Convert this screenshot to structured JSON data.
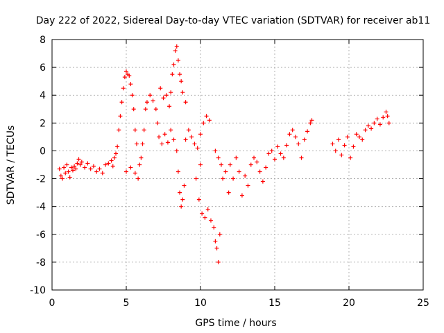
{
  "chart_data": {
    "type": "scatter",
    "title": "Day 222 of 2022, Sidereal Day-to-day VTEC variation (SDTVAR) for receiver ab11",
    "xlabel": "GPS time / hours",
    "ylabel": "SDTVAR / TECUs",
    "xlim": [
      0,
      25
    ],
    "ylim": [
      -10,
      8
    ],
    "xticks": [
      "0",
      "5",
      "10",
      "15",
      "20",
      "25"
    ],
    "yticks": [
      "-10",
      "-8",
      "-6",
      "-4",
      "-2",
      "0",
      "2",
      "4",
      "6",
      "8"
    ],
    "grid": true,
    "legend": "none",
    "marker": "plus",
    "color": "#ff0000",
    "series": [
      {
        "points": [
          [
            0.5,
            -1.3
          ],
          [
            0.6,
            -1.8
          ],
          [
            0.7,
            -2.0
          ],
          [
            0.8,
            -1.2
          ],
          [
            0.9,
            -1.6
          ],
          [
            1.0,
            -1.0
          ],
          [
            1.1,
            -1.5
          ],
          [
            1.2,
            -1.9
          ],
          [
            1.3,
            -1.2
          ],
          [
            1.4,
            -1.4
          ],
          [
            1.5,
            -1.1
          ],
          [
            1.6,
            -1.3
          ],
          [
            1.7,
            -0.9
          ],
          [
            1.8,
            -0.6
          ],
          [
            1.9,
            -1.0
          ],
          [
            2.0,
            -0.8
          ],
          [
            2.2,
            -1.2
          ],
          [
            2.4,
            -0.9
          ],
          [
            2.6,
            -1.3
          ],
          [
            2.8,
            -1.1
          ],
          [
            3.0,
            -1.5
          ],
          [
            3.2,
            -1.3
          ],
          [
            3.4,
            -1.6
          ],
          [
            3.6,
            -1.0
          ],
          [
            3.8,
            -0.9
          ],
          [
            4.0,
            -0.7
          ],
          [
            4.1,
            -1.1
          ],
          [
            4.2,
            -0.5
          ],
          [
            4.3,
            -0.2
          ],
          [
            4.4,
            0.3
          ],
          [
            4.5,
            1.5
          ],
          [
            4.6,
            2.5
          ],
          [
            4.7,
            3.5
          ],
          [
            4.8,
            4.5
          ],
          [
            4.9,
            5.3
          ],
          [
            5.0,
            5.7
          ],
          [
            5.1,
            5.5
          ],
          [
            5.2,
            5.4
          ],
          [
            5.3,
            4.8
          ],
          [
            5.4,
            4.0
          ],
          [
            5.5,
            3.0
          ],
          [
            5.6,
            1.5
          ],
          [
            5.7,
            0.5
          ],
          [
            5.0,
            -1.5
          ],
          [
            5.3,
            -1.2
          ],
          [
            5.6,
            -1.6
          ],
          [
            5.8,
            -2.0
          ],
          [
            5.9,
            -1.0
          ],
          [
            6.0,
            -0.5
          ],
          [
            6.1,
            0.5
          ],
          [
            6.2,
            1.5
          ],
          [
            6.3,
            3.0
          ],
          [
            6.4,
            3.5
          ],
          [
            6.6,
            4.0
          ],
          [
            6.8,
            3.6
          ],
          [
            7.0,
            3.0
          ],
          [
            7.1,
            2.0
          ],
          [
            7.2,
            1.0
          ],
          [
            7.3,
            4.5
          ],
          [
            7.5,
            3.8
          ],
          [
            7.7,
            4.0
          ],
          [
            7.9,
            3.2
          ],
          [
            8.0,
            4.2
          ],
          [
            8.1,
            5.5
          ],
          [
            8.2,
            6.2
          ],
          [
            8.3,
            7.2
          ],
          [
            8.4,
            7.5
          ],
          [
            8.5,
            6.5
          ],
          [
            8.6,
            5.5
          ],
          [
            8.7,
            5.0
          ],
          [
            8.8,
            4.2
          ],
          [
            9.0,
            3.5
          ],
          [
            7.4,
            0.5
          ],
          [
            7.6,
            1.2
          ],
          [
            7.8,
            0.6
          ],
          [
            8.0,
            1.5
          ],
          [
            8.2,
            0.8
          ],
          [
            8.4,
            0.0
          ],
          [
            8.5,
            -1.5
          ],
          [
            8.6,
            -3.0
          ],
          [
            8.7,
            -4.0
          ],
          [
            8.8,
            -3.5
          ],
          [
            8.9,
            -2.5
          ],
          [
            9.0,
            0.8
          ],
          [
            9.2,
            1.5
          ],
          [
            9.4,
            1.0
          ],
          [
            9.6,
            0.5
          ],
          [
            9.8,
            0.2
          ],
          [
            10.0,
            1.2
          ],
          [
            10.2,
            2.0
          ],
          [
            10.4,
            2.5
          ],
          [
            10.6,
            2.2
          ],
          [
            10.0,
            -1.0
          ],
          [
            9.7,
            -2.0
          ],
          [
            9.9,
            -3.5
          ],
          [
            10.1,
            -4.5
          ],
          [
            10.3,
            -4.8
          ],
          [
            10.5,
            -4.2
          ],
          [
            10.7,
            -5.0
          ],
          [
            10.9,
            -5.5
          ],
          [
            11.0,
            -6.5
          ],
          [
            11.1,
            -7.0
          ],
          [
            11.2,
            -8.0
          ],
          [
            11.3,
            -6.0
          ],
          [
            11.0,
            0.0
          ],
          [
            11.2,
            -0.5
          ],
          [
            11.4,
            -1.0
          ],
          [
            11.5,
            -2.0
          ],
          [
            11.7,
            -1.5
          ],
          [
            11.9,
            -3.0
          ],
          [
            12.0,
            -1.0
          ],
          [
            12.2,
            -2.0
          ],
          [
            12.4,
            -0.5
          ],
          [
            12.6,
            -1.5
          ],
          [
            12.8,
            -3.2
          ],
          [
            13.0,
            -1.8
          ],
          [
            13.2,
            -2.5
          ],
          [
            13.4,
            -1.0
          ],
          [
            13.6,
            -0.5
          ],
          [
            13.8,
            -0.8
          ],
          [
            14.0,
            -1.5
          ],
          [
            14.2,
            -2.2
          ],
          [
            14.4,
            -1.2
          ],
          [
            14.6,
            -0.2
          ],
          [
            14.8,
            0.0
          ],
          [
            15.0,
            -0.6
          ],
          [
            15.2,
            0.3
          ],
          [
            15.4,
            -0.2
          ],
          [
            15.6,
            -0.5
          ],
          [
            15.8,
            0.4
          ],
          [
            16.0,
            1.2
          ],
          [
            16.2,
            1.5
          ],
          [
            16.4,
            1.0
          ],
          [
            16.6,
            0.5
          ],
          [
            16.8,
            -0.5
          ],
          [
            17.0,
            0.8
          ],
          [
            17.2,
            1.4
          ],
          [
            17.4,
            2.0
          ],
          [
            17.5,
            2.2
          ],
          [
            18.9,
            0.5
          ],
          [
            19.1,
            0.0
          ],
          [
            19.3,
            0.8
          ],
          [
            19.5,
            -0.3
          ],
          [
            19.7,
            0.4
          ],
          [
            19.9,
            1.0
          ],
          [
            20.1,
            -0.5
          ],
          [
            20.3,
            0.3
          ],
          [
            20.5,
            1.2
          ],
          [
            20.7,
            1.0
          ],
          [
            20.9,
            0.8
          ],
          [
            21.1,
            1.5
          ],
          [
            21.3,
            1.8
          ],
          [
            21.5,
            1.6
          ],
          [
            21.7,
            2.0
          ],
          [
            21.9,
            2.3
          ],
          [
            22.1,
            1.9
          ],
          [
            22.3,
            2.4
          ],
          [
            22.5,
            2.8
          ],
          [
            22.6,
            2.5
          ],
          [
            22.7,
            2.0
          ]
        ]
      }
    ]
  }
}
